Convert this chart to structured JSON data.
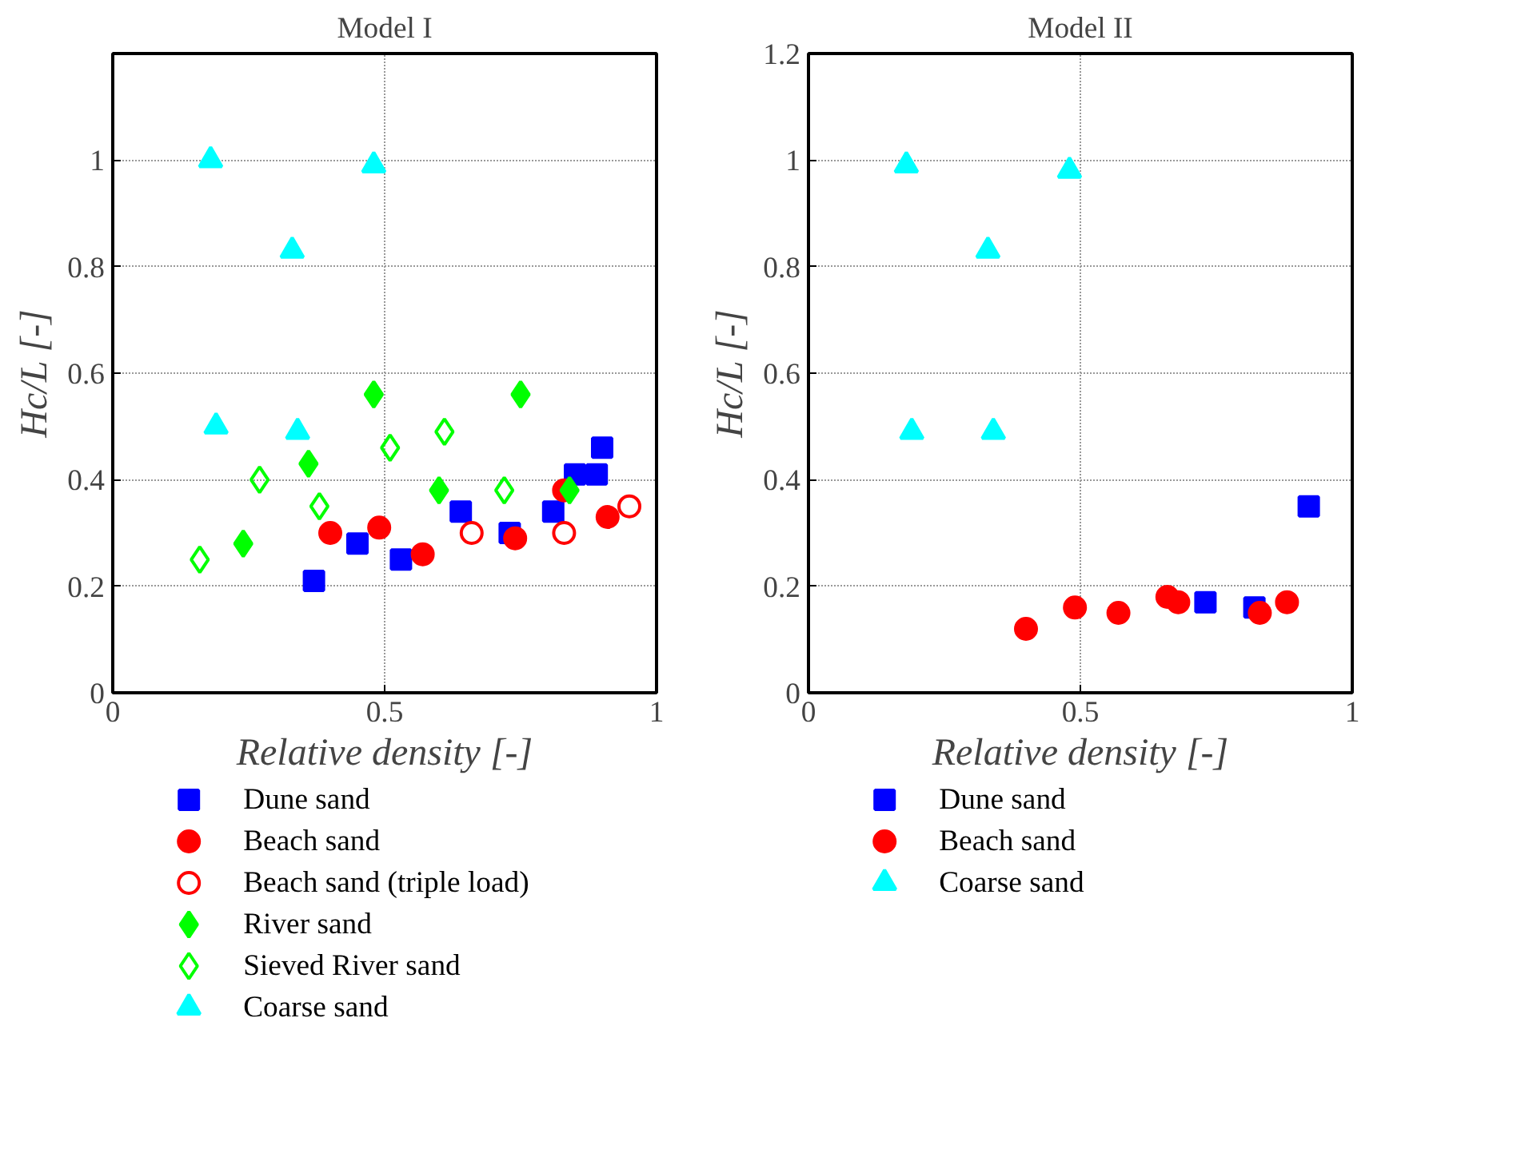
{
  "chart_data": [
    {
      "type": "scatter",
      "title": "Model I",
      "xlabel": "Relative density [-]",
      "ylabel": "Hc/L [-]",
      "xlim": [
        0,
        1
      ],
      "ylim": [
        0,
        1.2
      ],
      "xticks": [
        0,
        0.5,
        1
      ],
      "yticks": [
        0,
        0.2,
        0.4,
        0.6,
        0.8,
        1
      ],
      "grid": true,
      "legend": "bottom",
      "series": [
        {
          "name": "Dune sand",
          "color": "#0000ff",
          "marker": "square",
          "x": [
            0.37,
            0.45,
            0.53,
            0.64,
            0.73,
            0.81,
            0.85,
            0.89,
            0.9
          ],
          "values": [
            0.21,
            0.28,
            0.25,
            0.34,
            0.3,
            0.34,
            0.41,
            0.41,
            0.46
          ]
        },
        {
          "name": "Beach sand",
          "color": "#ff0000",
          "marker": "circle",
          "x": [
            0.4,
            0.49,
            0.57,
            0.74,
            0.83,
            0.91
          ],
          "values": [
            0.3,
            0.31,
            0.26,
            0.29,
            0.38,
            0.33
          ]
        },
        {
          "name": "Beach sand (triple load)",
          "color": "#ff0000",
          "marker": "circle",
          "x": [
            0.66,
            0.83,
            0.95
          ],
          "values": [
            0.3,
            0.3,
            0.35
          ]
        },
        {
          "name": "River sand",
          "color": "#00ff00",
          "marker": "diamond",
          "x": [
            0.24,
            0.36,
            0.48,
            0.6,
            0.75,
            0.84
          ],
          "values": [
            0.28,
            0.43,
            0.56,
            0.38,
            0.56,
            0.38
          ]
        },
        {
          "name": "Sieved River sand",
          "color": "#00ff00",
          "marker": "diamond",
          "x": [
            0.16,
            0.27,
            0.38,
            0.51,
            0.61,
            0.72
          ],
          "values": [
            0.25,
            0.4,
            0.35,
            0.46,
            0.49,
            0.38
          ]
        },
        {
          "name": "Coarse sand",
          "color": "#00ffff",
          "marker": "triangle",
          "x": [
            0.18,
            0.48,
            0.33,
            0.19,
            0.34
          ],
          "values": [
            1.0,
            0.99,
            0.83,
            0.5,
            0.49
          ]
        }
      ]
    },
    {
      "type": "scatter",
      "title": "Model II",
      "xlabel": "Relative density [-]",
      "ylabel": "Hc/L [-]",
      "xlim": [
        0,
        1
      ],
      "ylim": [
        0,
        1.2
      ],
      "xticks": [
        0,
        0.5,
        1
      ],
      "yticks": [
        0,
        0.2,
        0.4,
        0.6,
        0.8,
        1,
        1.2
      ],
      "grid": true,
      "legend": "bottom",
      "series": [
        {
          "name": "Dune sand",
          "color": "#0000ff",
          "marker": "square",
          "x": [
            0.73,
            0.82,
            0.92
          ],
          "values": [
            0.17,
            0.16,
            0.35
          ]
        },
        {
          "name": "Beach sand",
          "color": "#ff0000",
          "marker": "circle",
          "x": [
            0.4,
            0.49,
            0.57,
            0.66,
            0.68,
            0.83,
            0.88
          ],
          "values": [
            0.12,
            0.16,
            0.15,
            0.18,
            0.17,
            0.15,
            0.17
          ]
        },
        {
          "name": "Coarse sand",
          "color": "#00ffff",
          "marker": "triangle",
          "x": [
            0.18,
            0.48,
            0.33,
            0.19,
            0.34
          ],
          "values": [
            0.99,
            0.98,
            0.83,
            0.49,
            0.49
          ]
        }
      ]
    }
  ]
}
